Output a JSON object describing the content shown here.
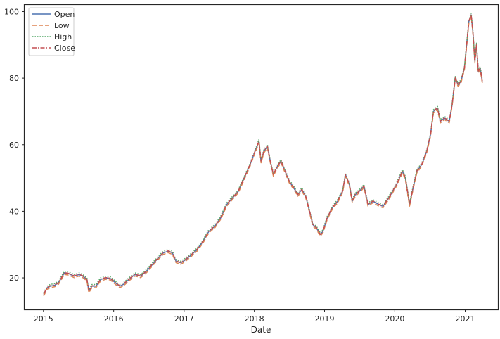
{
  "chart_data": {
    "type": "line",
    "title": "",
    "xlabel": "Date",
    "ylabel": "",
    "x_ticks": [
      "2015",
      "2016",
      "2017",
      "2018",
      "2019",
      "2020",
      "2021"
    ],
    "y_ticks": [
      20,
      40,
      60,
      80,
      100
    ],
    "xlim": [
      "2014-09-25",
      "2021-06-20"
    ],
    "ylim": [
      10.5,
      102
    ],
    "grid": false,
    "legend_position": "top-left",
    "series": [
      {
        "name": "Open",
        "color": "#4c72b0",
        "dash": "solid",
        "offset": 0.0
      },
      {
        "name": "Low",
        "color": "#dd8452",
        "dash": "dashed",
        "offset": -0.45
      },
      {
        "name": "High",
        "color": "#55a868",
        "dash": "dotted",
        "offset": 0.5
      },
      {
        "name": "Close",
        "color": "#c44e52",
        "dash": "dashdot",
        "offset": 0.1
      }
    ],
    "x": [
      "2015-01-02",
      "2015-01-20",
      "2015-02-05",
      "2015-03-01",
      "2015-03-20",
      "2015-04-05",
      "2015-04-20",
      "2015-05-15",
      "2015-06-10",
      "2015-07-05",
      "2015-07-25",
      "2015-08-15",
      "2015-08-25",
      "2015-09-10",
      "2015-10-01",
      "2015-10-25",
      "2015-11-20",
      "2015-12-15",
      "2016-01-10",
      "2016-02-01",
      "2016-02-20",
      "2016-03-20",
      "2016-04-20",
      "2016-05-20",
      "2016-06-20",
      "2016-07-20",
      "2016-08-20",
      "2016-09-15",
      "2016-10-10",
      "2016-11-01",
      "2016-11-20",
      "2016-12-15",
      "2017-01-10",
      "2017-02-10",
      "2017-03-10",
      "2017-04-10",
      "2017-05-10",
      "2017-06-10",
      "2017-07-10",
      "2017-08-10",
      "2017-09-10",
      "2017-10-10",
      "2017-11-10",
      "2017-12-10",
      "2018-01-05",
      "2018-01-25",
      "2018-02-05",
      "2018-02-20",
      "2018-03-10",
      "2018-03-25",
      "2018-04-10",
      "2018-05-01",
      "2018-05-20",
      "2018-06-10",
      "2018-07-01",
      "2018-07-25",
      "2018-08-15",
      "2018-09-05",
      "2018-09-25",
      "2018-10-15",
      "2018-11-01",
      "2018-11-20",
      "2018-12-10",
      "2018-12-24",
      "2019-01-15",
      "2019-02-10",
      "2019-03-10",
      "2019-04-05",
      "2019-04-20",
      "2019-05-10",
      "2019-05-25",
      "2019-06-10",
      "2019-07-01",
      "2019-07-25",
      "2019-08-15",
      "2019-09-10",
      "2019-10-10",
      "2019-11-01",
      "2019-12-01",
      "2020-01-10",
      "2020-02-10",
      "2020-02-25",
      "2020-03-18",
      "2020-04-05",
      "2020-04-25",
      "2020-05-20",
      "2020-06-15",
      "2020-07-05",
      "2020-07-20",
      "2020-08-10",
      "2020-08-25",
      "2020-09-15",
      "2020-10-10",
      "2020-10-25",
      "2020-11-10",
      "2020-11-25",
      "2020-12-10",
      "2020-12-28",
      "2021-01-10",
      "2021-01-20",
      "2021-02-01",
      "2021-02-10",
      "2021-02-20",
      "2021-03-01",
      "2021-03-10",
      "2021-03-20",
      "2021-03-31"
    ],
    "values": [
      15.0,
      17.0,
      17.5,
      17.8,
      18.5,
      20.0,
      21.5,
      21.2,
      20.5,
      21.0,
      20.5,
      19.5,
      16.0,
      17.5,
      17.5,
      19.5,
      20.0,
      19.8,
      18.5,
      17.5,
      18.0,
      19.5,
      21.0,
      20.5,
      22.0,
      24.0,
      26.0,
      27.5,
      28.0,
      27.5,
      25.0,
      24.5,
      25.5,
      27.0,
      28.5,
      31.0,
      34.0,
      35.5,
      38.0,
      42.0,
      44.0,
      46.0,
      50.0,
      54.0,
      58.0,
      61.0,
      55.0,
      58.0,
      59.5,
      55.0,
      51.0,
      53.5,
      55.0,
      52.0,
      49.0,
      47.0,
      45.0,
      46.5,
      44.5,
      40.0,
      36.0,
      35.0,
      33.0,
      34.0,
      38.0,
      41.0,
      43.0,
      46.0,
      51.0,
      48.0,
      43.0,
      45.0,
      46.0,
      47.5,
      42.0,
      43.0,
      42.0,
      41.5,
      44.0,
      48.0,
      52.0,
      50.0,
      42.0,
      47.0,
      52.0,
      54.0,
      58.0,
      63.0,
      70.0,
      71.0,
      67.0,
      68.0,
      67.0,
      72.0,
      80.0,
      78.0,
      79.0,
      83.0,
      91.0,
      97.0,
      99.0,
      94.0,
      85.0,
      90.0,
      82.0,
      83.0,
      79.0
    ]
  }
}
